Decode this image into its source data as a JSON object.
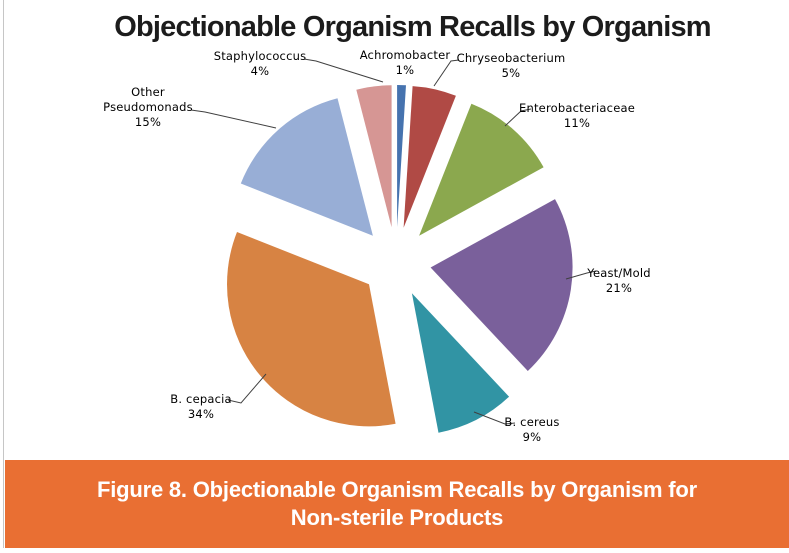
{
  "chart_data": {
    "type": "pie",
    "title": "Objectionable Organism Recalls by Organism",
    "unit": "percent",
    "exploded": true,
    "start_angle": "12-oclock",
    "direction": "clockwise",
    "slices": [
      {
        "label": "Achromobacter",
        "value": 1,
        "pct_label": "1%",
        "color": "#4673af"
      },
      {
        "label": "Chryseobacterium",
        "value": 5,
        "pct_label": "5%",
        "color": "#b04a45"
      },
      {
        "label": "Enterobacteriaceae",
        "value": 11,
        "pct_label": "11%",
        "color": "#8ba84e"
      },
      {
        "label": "Yeast/Mold",
        "value": 21,
        "pct_label": "21%",
        "color": "#7a609b"
      },
      {
        "label": "B. cereus",
        "value": 9,
        "pct_label": "9%",
        "color": "#3194a4"
      },
      {
        "label": "B. cepacia",
        "value": 34,
        "pct_label": "34%",
        "color": "#d78343"
      },
      {
        "label": "Other\nPseudomonads",
        "value": 15,
        "pct_label": "15%",
        "color": "#98aed6"
      },
      {
        "label": "Staphylococcus",
        "value": 4,
        "pct_label": "4%",
        "color": "#d69694"
      }
    ]
  },
  "caption": {
    "text": "Figure 8. Objectionable Organism Recalls by Organism for\nNon-sterile Products"
  },
  "colors": {
    "banner_bg": "#e96f33",
    "caption_text": "#ffffff",
    "leader_line": "#404040",
    "title_text": "#1c1c1c"
  }
}
